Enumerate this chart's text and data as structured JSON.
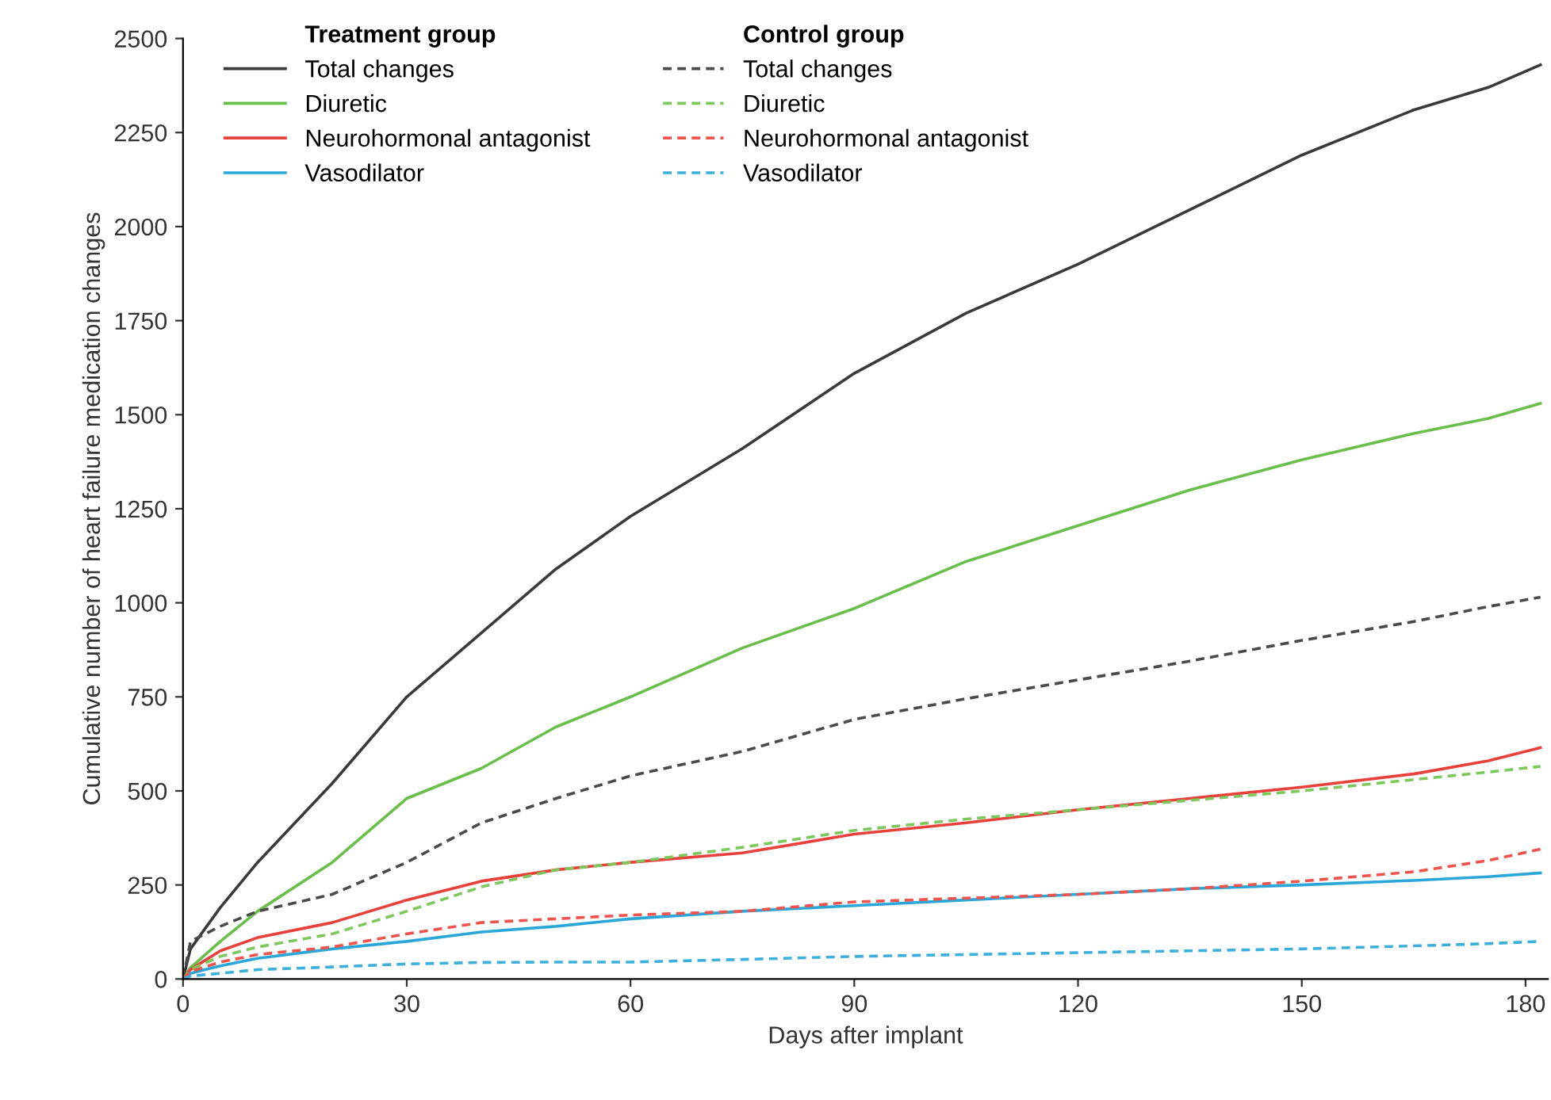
{
  "chart_data": {
    "type": "line",
    "xlabel": "Days after implant",
    "ylabel": "Cumulative number of heart failure medication changes",
    "annotations": [
      "Treatment group",
      "Control group"
    ],
    "xlim": [
      0,
      183
    ],
    "xticks": [
      0,
      30,
      60,
      90,
      120,
      150,
      180
    ],
    "ylim": [
      0,
      2500
    ],
    "yticks": [
      0,
      250,
      500,
      750,
      1000,
      1250,
      1500,
      1750,
      2000,
      2250,
      2500
    ],
    "grid": false,
    "legend": "top left",
    "marker": "none",
    "x": [
      0,
      1,
      5,
      10,
      20,
      30,
      40,
      50,
      60,
      75,
      90,
      105,
      120,
      135,
      150,
      165,
      175,
      182
    ],
    "series": [
      {
        "name": "Total changes",
        "color": "#3a3a3a",
        "line_style": "solid",
        "values": [
          0,
          80,
          190,
          310,
          520,
          750,
          920,
          1090,
          1230,
          1410,
          1610,
          1770,
          1900,
          2045,
          2190,
          2310,
          2370,
          2430
        ]
      },
      {
        "name": "Diuretic",
        "color": "#6abf4b",
        "line_style": "solid",
        "values": [
          0,
          30,
          100,
          180,
          310,
          480,
          560,
          670,
          750,
          880,
          985,
          1110,
          1205,
          1300,
          1380,
          1450,
          1490,
          1530
        ]
      },
      {
        "name": "Neurohormonal antagonist",
        "color": "#e8403a",
        "line_style": "solid",
        "values": [
          0,
          25,
          75,
          110,
          150,
          210,
          260,
          290,
          310,
          335,
          385,
          415,
          450,
          480,
          510,
          545,
          580,
          615
        ]
      },
      {
        "name": "Vasodilator",
        "color": "#2aa7d8",
        "line_style": "solid",
        "values": [
          0,
          15,
          35,
          55,
          80,
          100,
          125,
          140,
          160,
          180,
          195,
          210,
          225,
          240,
          250,
          262,
          272,
          282
        ]
      },
      {
        "name": "Total changes",
        "color": "#4a4a4a",
        "line_style": "dashed",
        "values": [
          0,
          100,
          140,
          180,
          225,
          310,
          415,
          480,
          540,
          605,
          690,
          745,
          795,
          845,
          900,
          950,
          990,
          1015
        ]
      },
      {
        "name": "Diuretic",
        "color": "#7cc85c",
        "line_style": "dashed",
        "values": [
          0,
          25,
          60,
          85,
          120,
          180,
          245,
          290,
          310,
          350,
          395,
          425,
          450,
          475,
          500,
          530,
          550,
          565
        ]
      },
      {
        "name": "Neurohormonal antagonist",
        "color": "#f0534c",
        "line_style": "dashed",
        "values": [
          0,
          20,
          45,
          65,
          85,
          120,
          150,
          160,
          170,
          180,
          205,
          215,
          225,
          240,
          260,
          285,
          315,
          345
        ]
      },
      {
        "name": "Vasodilator",
        "color": "#3bb0dc",
        "line_style": "dashed",
        "values": [
          0,
          8,
          15,
          25,
          32,
          40,
          44,
          45,
          45,
          52,
          60,
          65,
          70,
          75,
          80,
          88,
          94,
          100
        ]
      }
    ]
  }
}
